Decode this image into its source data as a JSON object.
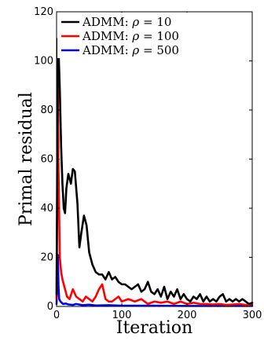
{
  "chart_data": {
    "type": "line",
    "xlabel": "Iteration",
    "ylabel": "Primal residual",
    "xlim": [
      0,
      300
    ],
    "ylim": [
      0,
      120
    ],
    "xticks": [
      0,
      100,
      200,
      300
    ],
    "yticks": [
      0,
      20,
      40,
      60,
      80,
      100,
      120
    ],
    "grid": false,
    "legend_position": "top-left",
    "series": [
      {
        "name": "ADMM: ρ = 10",
        "legend_prefix": "ADMM: ",
        "legend_symbol": "ρ",
        "legend_value": " = 10",
        "color": "#000000",
        "x": [
          0,
          1,
          2,
          3,
          5,
          7,
          9,
          11,
          13,
          15,
          18,
          22,
          25,
          28,
          32,
          35,
          38,
          42,
          46,
          50,
          55,
          60,
          65,
          70,
          75,
          80,
          85,
          90,
          95,
          100,
          105,
          110,
          115,
          120,
          125,
          130,
          135,
          140,
          145,
          150,
          155,
          160,
          165,
          170,
          175,
          180,
          185,
          190,
          195,
          200,
          205,
          210,
          215,
          220,
          225,
          230,
          235,
          240,
          245,
          250,
          255,
          260,
          265,
          270,
          275,
          280,
          285,
          290,
          295,
          300
        ],
        "y": [
          5,
          60,
          109,
          105,
          88,
          65,
          50,
          40,
          38,
          48,
          54,
          50,
          56,
          55,
          42,
          24,
          30,
          37,
          33,
          22,
          17,
          14,
          13,
          13,
          11,
          14,
          11,
          12,
          10,
          9,
          9,
          8,
          7,
          8,
          9,
          6,
          7,
          10,
          6,
          5,
          7,
          4,
          8,
          3,
          6,
          4,
          7,
          3,
          5,
          3,
          2,
          4,
          3,
          5,
          2,
          4,
          2,
          3,
          2,
          4,
          5,
          2,
          3,
          2,
          3,
          2,
          3,
          2,
          1,
          1.5
        ]
      },
      {
        "name": "ADMM: ρ = 100",
        "legend_prefix": "ADMM: ",
        "legend_symbol": "ρ",
        "legend_value": " = 100",
        "color": "#ff0000",
        "x": [
          0,
          1,
          2,
          3,
          5,
          7,
          9,
          11,
          13,
          16,
          20,
          25,
          30,
          35,
          40,
          45,
          50,
          55,
          60,
          65,
          70,
          75,
          80,
          85,
          90,
          95,
          100,
          110,
          120,
          130,
          140,
          150,
          160,
          170,
          180,
          190,
          200,
          210,
          220,
          230,
          240,
          250,
          260,
          270,
          280,
          290,
          300
        ],
        "y": [
          3,
          40,
          89,
          55,
          20,
          14,
          11,
          9,
          7,
          4,
          3,
          7,
          4,
          3,
          2,
          4,
          3,
          2,
          4,
          7,
          9,
          3,
          2,
          2,
          3,
          4,
          2,
          3,
          2,
          3,
          1,
          2,
          1.5,
          2,
          1,
          2,
          1,
          1.5,
          1,
          1,
          0.8,
          1,
          0.6,
          0.8,
          1,
          0.6,
          0.8
        ]
      },
      {
        "name": "ADMM: ρ = 500",
        "legend_prefix": "ADMM: ",
        "legend_symbol": "ρ",
        "legend_value": " = 500",
        "color": "#0000ff",
        "x": [
          0,
          1,
          2,
          3,
          4,
          6,
          8,
          10,
          14,
          18,
          25,
          30,
          40,
          50,
          60,
          80,
          100,
          150,
          200,
          250,
          300
        ],
        "y": [
          1,
          12,
          21,
          8,
          3,
          2,
          1.5,
          1,
          1.2,
          0.8,
          0.6,
          1,
          0.5,
          0.7,
          0.4,
          0.5,
          0.3,
          0.3,
          0.2,
          0.2,
          0.2
        ]
      }
    ]
  }
}
